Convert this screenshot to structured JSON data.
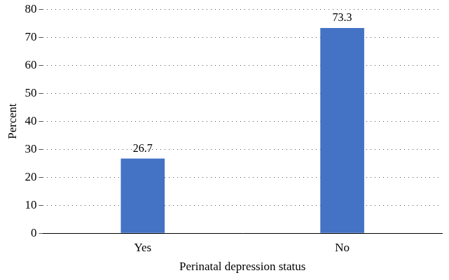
{
  "chart_data": {
    "type": "bar",
    "categories": [
      "Yes",
      "No"
    ],
    "values": [
      26.7,
      73.3
    ],
    "color": "#4472c4",
    "x_label": "Perinatal depression status",
    "y_label": "Percent",
    "ylim": [
      0,
      80
    ],
    "yticks": [
      0,
      10,
      20,
      30,
      40,
      50,
      60,
      70,
      80
    ],
    "grid": true,
    "data_labels": true
  }
}
